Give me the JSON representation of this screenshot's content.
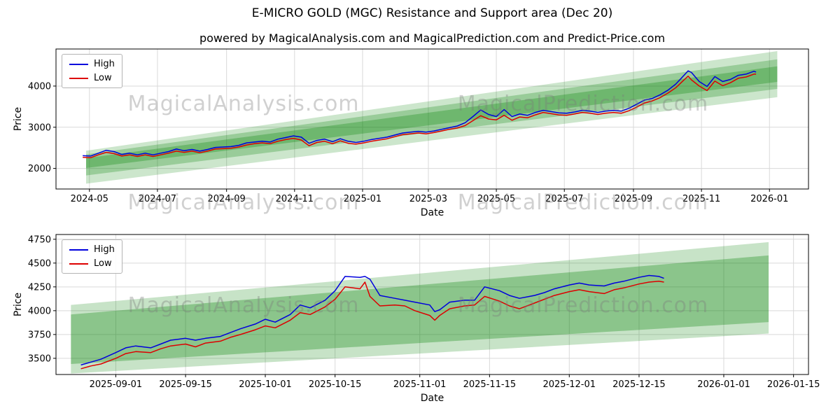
{
  "title": "E-MICRO GOLD (MGC) Resistance and Support area (Dec 20)",
  "subtitle": "powered by MagicalAnalysis.com and MagicalPrediction.com and Predict-Price.com",
  "watermarks": {
    "left": "MagicalAnalysis.com",
    "right": "MagicalPrediction.com"
  },
  "colors": {
    "high": "#0000dd",
    "low": "#dd0000",
    "band": "#008000",
    "grid": "#d9d9d9",
    "spine": "#000000"
  },
  "chart_data": [
    {
      "type": "line",
      "title": "",
      "xlabel": "Date",
      "ylabel": "Price",
      "legend": [
        "High",
        "Low"
      ],
      "legend_position": "upper left",
      "grid": true,
      "xlim": [
        "2024-04-01",
        "2026-02-05"
      ],
      "ylim": [
        1500,
        4900
      ],
      "yticks": [
        2000,
        3000,
        4000
      ],
      "xticks": [
        {
          "d": "2024-05-01",
          "label": "2024-05"
        },
        {
          "d": "2024-07-01",
          "label": "2024-07"
        },
        {
          "d": "2024-09-01",
          "label": "2024-09"
        },
        {
          "d": "2024-11-01",
          "label": "2024-11"
        },
        {
          "d": "2025-01-01",
          "label": "2025-01"
        },
        {
          "d": "2025-03-01",
          "label": "2025-03"
        },
        {
          "d": "2025-05-01",
          "label": "2025-05"
        },
        {
          "d": "2025-07-01",
          "label": "2025-07"
        },
        {
          "d": "2025-09-01",
          "label": "2025-09"
        },
        {
          "d": "2025-11-01",
          "label": "2025-11"
        },
        {
          "d": "2026-01-01",
          "label": "2026-01"
        }
      ],
      "bands": [
        {
          "x": [
            "2024-04-28",
            "2026-01-08"
          ],
          "top": [
            2430,
            4850
          ],
          "bottom": [
            1630,
            3730
          ],
          "alpha": 0.2
        },
        {
          "x": [
            "2024-04-28",
            "2026-01-08"
          ],
          "top": [
            2340,
            4650
          ],
          "bottom": [
            1830,
            3930
          ],
          "alpha": 0.25
        },
        {
          "x": [
            "2024-04-28",
            "2026-01-08"
          ],
          "top": [
            2250,
            4480
          ],
          "bottom": [
            2010,
            4100
          ],
          "alpha": 0.28
        }
      ],
      "dates": [
        "2024-04-25",
        "2024-05-02",
        "2024-05-09",
        "2024-05-16",
        "2024-05-23",
        "2024-05-30",
        "2024-06-06",
        "2024-06-13",
        "2024-06-20",
        "2024-06-27",
        "2024-07-04",
        "2024-07-11",
        "2024-07-18",
        "2024-07-25",
        "2024-08-01",
        "2024-08-08",
        "2024-08-15",
        "2024-08-22",
        "2024-08-29",
        "2024-09-05",
        "2024-09-12",
        "2024-09-19",
        "2024-09-26",
        "2024-10-03",
        "2024-10-10",
        "2024-10-17",
        "2024-10-24",
        "2024-10-31",
        "2024-11-07",
        "2024-11-14",
        "2024-11-21",
        "2024-11-28",
        "2024-12-05",
        "2024-12-12",
        "2024-12-19",
        "2024-12-26",
        "2025-01-02",
        "2025-01-09",
        "2025-01-16",
        "2025-01-23",
        "2025-01-30",
        "2025-02-06",
        "2025-02-13",
        "2025-02-20",
        "2025-02-27",
        "2025-03-06",
        "2025-03-13",
        "2025-03-20",
        "2025-03-27",
        "2025-04-03",
        "2025-04-10",
        "2025-04-17",
        "2025-04-24",
        "2025-05-01",
        "2025-05-08",
        "2025-05-15",
        "2025-05-22",
        "2025-05-29",
        "2025-06-05",
        "2025-06-12",
        "2025-06-19",
        "2025-06-26",
        "2025-07-03",
        "2025-07-10",
        "2025-07-17",
        "2025-07-24",
        "2025-07-31",
        "2025-08-07",
        "2025-08-14",
        "2025-08-21",
        "2025-08-28",
        "2025-09-04",
        "2025-09-11",
        "2025-09-18",
        "2025-09-25",
        "2025-10-02",
        "2025-10-09",
        "2025-10-16",
        "2025-10-20",
        "2025-10-23",
        "2025-10-30",
        "2025-11-06",
        "2025-11-13",
        "2025-11-20",
        "2025-11-27",
        "2025-12-04",
        "2025-12-11",
        "2025-12-18",
        "2025-12-20"
      ],
      "high": [
        2310,
        2300,
        2370,
        2440,
        2410,
        2340,
        2370,
        2330,
        2370,
        2330,
        2370,
        2410,
        2470,
        2430,
        2460,
        2420,
        2460,
        2510,
        2520,
        2530,
        2560,
        2620,
        2640,
        2660,
        2640,
        2710,
        2750,
        2790,
        2760,
        2610,
        2680,
        2710,
        2650,
        2720,
        2660,
        2630,
        2660,
        2700,
        2730,
        2760,
        2810,
        2860,
        2880,
        2900,
        2880,
        2910,
        2950,
        2990,
        3030,
        3110,
        3260,
        3420,
        3310,
        3260,
        3430,
        3260,
        3320,
        3290,
        3360,
        3410,
        3380,
        3350,
        3340,
        3370,
        3410,
        3390,
        3360,
        3390,
        3410,
        3390,
        3460,
        3560,
        3660,
        3700,
        3790,
        3900,
        4050,
        4250,
        4370,
        4330,
        4110,
        3990,
        4230,
        4110,
        4160,
        4260,
        4290,
        4360,
        4340
      ],
      "low": [
        2270,
        2260,
        2330,
        2390,
        2360,
        2300,
        2330,
        2290,
        2330,
        2290,
        2330,
        2370,
        2420,
        2390,
        2420,
        2380,
        2420,
        2470,
        2480,
        2490,
        2520,
        2570,
        2600,
        2620,
        2600,
        2660,
        2700,
        2730,
        2690,
        2550,
        2630,
        2660,
        2600,
        2670,
        2610,
        2590,
        2620,
        2660,
        2690,
        2720,
        2770,
        2820,
        2840,
        2860,
        2840,
        2870,
        2910,
        2950,
        2980,
        3040,
        3160,
        3280,
        3200,
        3180,
        3290,
        3170,
        3250,
        3230,
        3300,
        3360,
        3330,
        3300,
        3290,
        3320,
        3360,
        3340,
        3310,
        3340,
        3360,
        3340,
        3400,
        3490,
        3590,
        3640,
        3720,
        3830,
        3960,
        4140,
        4240,
        4150,
        4000,
        3890,
        4120,
        4010,
        4080,
        4190,
        4220,
        4290,
        4290
      ]
    },
    {
      "type": "line",
      "title": "",
      "xlabel": "Date",
      "ylabel": "Price",
      "legend": [
        "High",
        "Low"
      ],
      "legend_position": "upper left",
      "grid": true,
      "xlim": [
        "2025-08-20",
        "2026-01-18"
      ],
      "ylim": [
        3330,
        4800
      ],
      "yticks": [
        3500,
        3750,
        4000,
        4250,
        4500,
        4750
      ],
      "xticks": [
        {
          "d": "2025-09-01",
          "label": "2025-09-01"
        },
        {
          "d": "2025-09-15",
          "label": "2025-09-15"
        },
        {
          "d": "2025-10-01",
          "label": "2025-10-01"
        },
        {
          "d": "2025-10-15",
          "label": "2025-10-15"
        },
        {
          "d": "2025-11-01",
          "label": "2025-11-01"
        },
        {
          "d": "2025-11-15",
          "label": "2025-11-15"
        },
        {
          "d": "2025-12-01",
          "label": "2025-12-01"
        },
        {
          "d": "2025-12-15",
          "label": "2025-12-15"
        },
        {
          "d": "2026-01-01",
          "label": "2026-01-01"
        },
        {
          "d": "2026-01-15",
          "label": "2026-01-15"
        }
      ],
      "bands": [
        {
          "x": [
            "2025-08-23",
            "2026-01-10"
          ],
          "top": [
            4060,
            4720
          ],
          "bottom": [
            3340,
            3760
          ],
          "alpha": 0.22
        },
        {
          "x": [
            "2025-08-23",
            "2026-01-10"
          ],
          "top": [
            3960,
            4580
          ],
          "bottom": [
            3440,
            3880
          ],
          "alpha": 0.3
        }
      ],
      "dates": [
        "2025-08-25",
        "2025-08-27",
        "2025-08-29",
        "2025-09-01",
        "2025-09-03",
        "2025-09-05",
        "2025-09-08",
        "2025-09-10",
        "2025-09-12",
        "2025-09-15",
        "2025-09-17",
        "2025-09-19",
        "2025-09-22",
        "2025-09-24",
        "2025-09-26",
        "2025-09-29",
        "2025-10-01",
        "2025-10-03",
        "2025-10-06",
        "2025-10-08",
        "2025-10-10",
        "2025-10-13",
        "2025-10-15",
        "2025-10-17",
        "2025-10-20",
        "2025-10-21",
        "2025-10-22",
        "2025-10-24",
        "2025-10-27",
        "2025-10-29",
        "2025-10-31",
        "2025-11-03",
        "2025-11-04",
        "2025-11-05",
        "2025-11-07",
        "2025-11-10",
        "2025-11-12",
        "2025-11-14",
        "2025-11-17",
        "2025-11-19",
        "2025-11-21",
        "2025-11-24",
        "2025-11-26",
        "2025-11-28",
        "2025-12-01",
        "2025-12-03",
        "2025-12-05",
        "2025-12-08",
        "2025-12-10",
        "2025-12-12",
        "2025-12-15",
        "2025-12-17",
        "2025-12-19",
        "2025-12-20"
      ],
      "high": [
        3430,
        3460,
        3490,
        3560,
        3610,
        3630,
        3610,
        3650,
        3690,
        3710,
        3690,
        3710,
        3730,
        3770,
        3810,
        3860,
        3910,
        3880,
        3960,
        4060,
        4030,
        4110,
        4210,
        4360,
        4350,
        4360,
        4330,
        4160,
        4130,
        4110,
        4090,
        4060,
        3990,
        4010,
        4090,
        4110,
        4110,
        4250,
        4210,
        4160,
        4130,
        4160,
        4190,
        4230,
        4270,
        4290,
        4270,
        4260,
        4290,
        4310,
        4350,
        4370,
        4360,
        4340
      ],
      "low": [
        3390,
        3420,
        3440,
        3500,
        3550,
        3570,
        3560,
        3600,
        3630,
        3650,
        3620,
        3660,
        3680,
        3720,
        3750,
        3800,
        3840,
        3820,
        3900,
        3980,
        3960,
        4040,
        4120,
        4250,
        4230,
        4300,
        4150,
        4050,
        4060,
        4050,
        4000,
        3950,
        3900,
        3950,
        4020,
        4050,
        4060,
        4150,
        4100,
        4050,
        4020,
        4080,
        4120,
        4160,
        4200,
        4220,
        4200,
        4180,
        4220,
        4240,
        4280,
        4300,
        4310,
        4300
      ]
    }
  ]
}
